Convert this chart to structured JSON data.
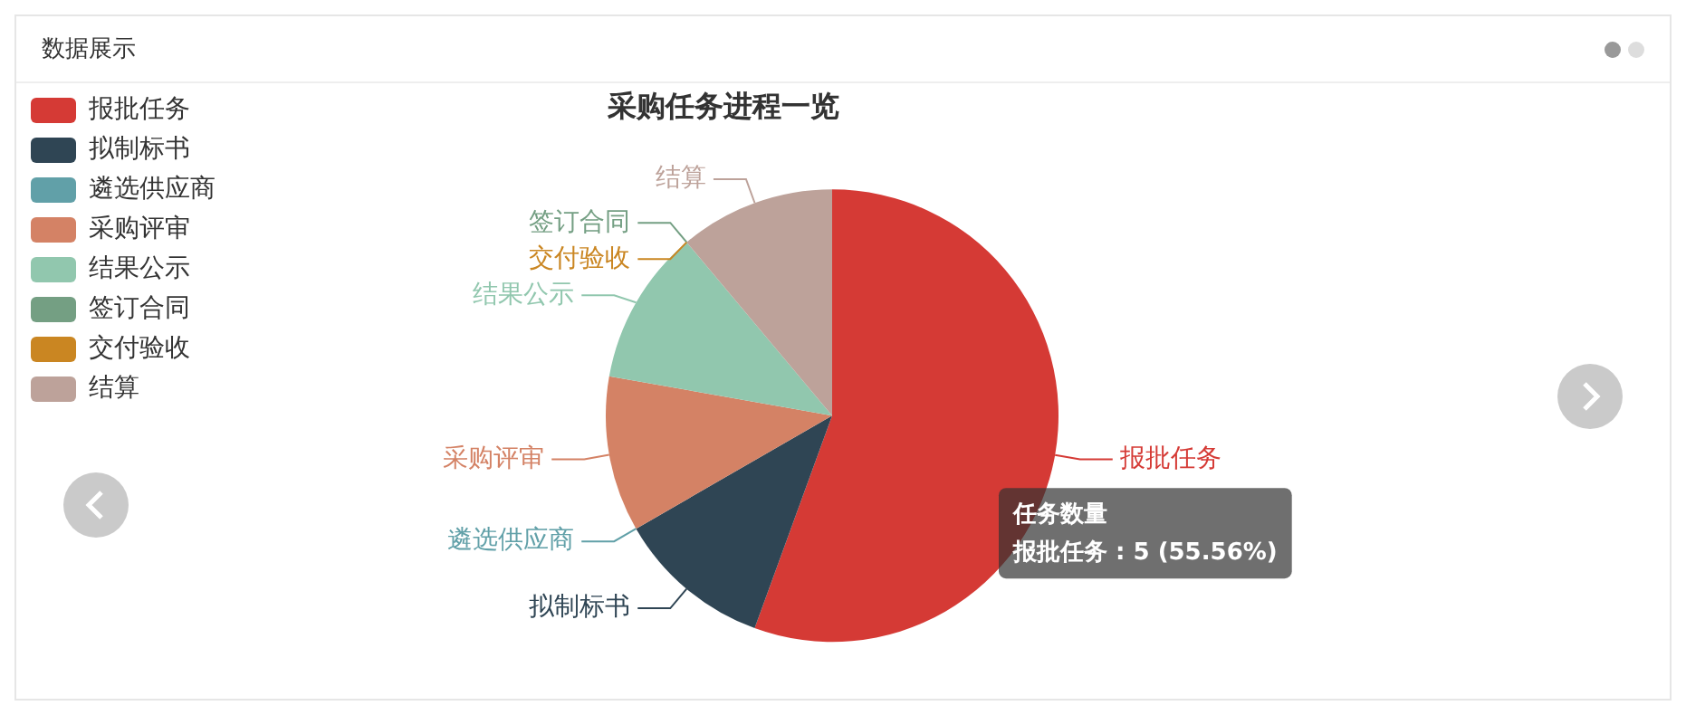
{
  "chart_data": {
    "type": "pie",
    "title": "采购任务进程一览",
    "categories": [
      "报批任务",
      "拟制标书",
      "遴选供应商",
      "采购评审",
      "结果公示",
      "签订合同",
      "交付验收",
      "结算"
    ],
    "values": [
      55.56,
      11.11,
      0,
      11.11,
      11.11,
      0,
      0,
      11.11
    ],
    "colors": [
      "#d53a35",
      "#2f4554",
      "#61a0a8",
      "#d48265",
      "#91c7ae",
      "#749f83",
      "#ca8622",
      "#bda29a"
    ],
    "legend": "left",
    "annotations": [
      "数据展示",
      "任务数量",
      "报批任务 : 5 (55.56%)"
    ]
  }
}
